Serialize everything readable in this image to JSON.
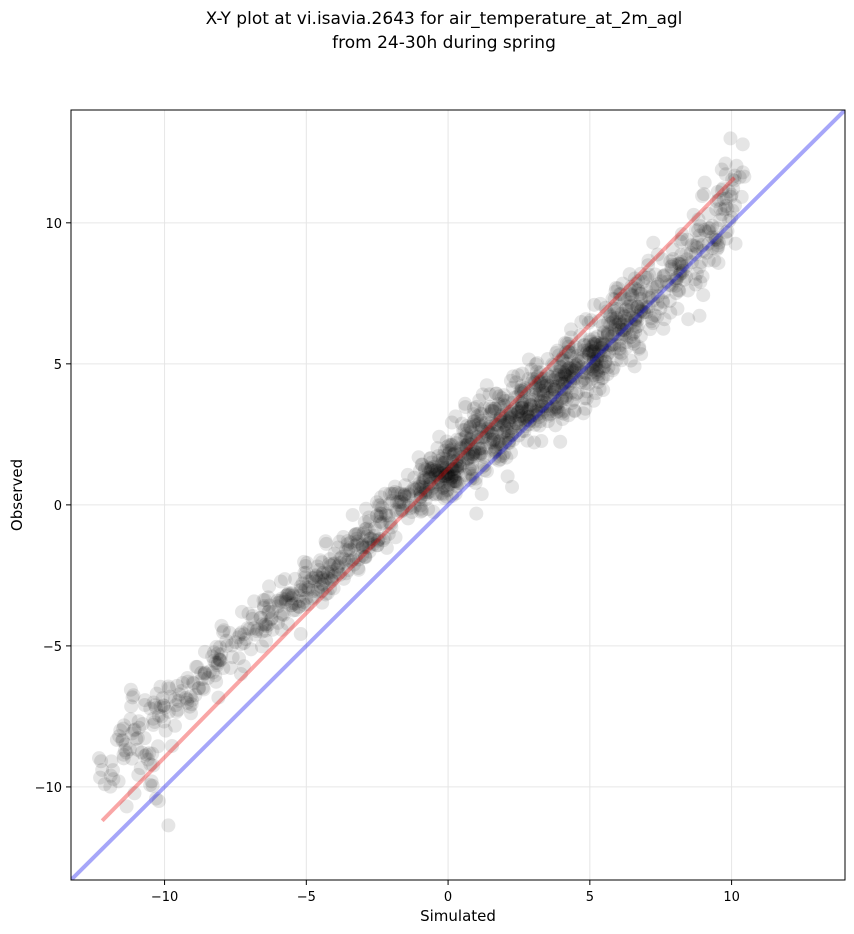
{
  "chart_data": {
    "type": "scatter",
    "title_lines": [
      "X-Y plot at vi.isavia.2643 for air_temperature_at_2m_agl",
      "from 24-30h during spring"
    ],
    "xlabel": "Simulated",
    "ylabel": "Observed",
    "xlim": [
      -13.3,
      14.0
    ],
    "ylim": [
      -13.3,
      14.0
    ],
    "xticks": [
      -10,
      -5,
      0,
      5,
      10
    ],
    "yticks": [
      -10,
      -5,
      0,
      5,
      10
    ],
    "xtick_labels": [
      "−10",
      "−5",
      "0",
      "5",
      "10"
    ],
    "ytick_labels": [
      "−10",
      "−5",
      "0",
      "5",
      "10"
    ],
    "grid": true,
    "point_color": "#000000",
    "point_alpha": 0.1,
    "scatter": {
      "description_of_cloud": "dense cloud of ~2000 observations along y = 1.01x + 1.0 (red fit), spread wider at mid/high values",
      "x": [
        -12.2,
        -11.9,
        -11.6,
        -11.4,
        -11.2,
        -11.0,
        -10.9,
        -10.7,
        -10.5,
        -10.4,
        -10.2,
        -10.1,
        -10.0,
        -9.8,
        -9.6,
        -9.4,
        -9.2,
        -9.0,
        -8.8,
        -8.6,
        -8.4,
        -8.2,
        -8.0,
        -7.8,
        -7.6,
        -7.4,
        -7.2,
        -7.0,
        -6.8,
        -6.6,
        -6.4,
        -6.2,
        -6.0,
        -5.8,
        -5.6,
        -5.4,
        -5.2,
        -5.0,
        -4.8,
        -4.6,
        -4.4,
        -4.2,
        -4.0,
        -3.8,
        -3.6,
        -3.4,
        -3.2,
        -3.0,
        -2.8,
        -2.6,
        -2.4,
        -2.2,
        -2.0,
        -1.8,
        -1.6,
        -1.4,
        -1.2,
        -1.0,
        -0.8,
        -0.6,
        -0.4,
        -0.2,
        0.0,
        0.2,
        0.4,
        0.6,
        0.8,
        1.0,
        1.2,
        1.4,
        1.6,
        1.8,
        2.0,
        2.2,
        2.4,
        2.6,
        2.8,
        3.0,
        3.2,
        3.4,
        3.6,
        3.8,
        4.0,
        4.2,
        4.4,
        4.6,
        4.8,
        5.0,
        5.2,
        5.4,
        5.6,
        5.8,
        6.0,
        6.2,
        6.4,
        6.6,
        6.8,
        7.0,
        7.2,
        7.4,
        7.6,
        7.8,
        8.0,
        8.2,
        8.4,
        8.6,
        8.8,
        9.0,
        9.2,
        9.4,
        9.6,
        9.8,
        10.0,
        10.1
      ],
      "y": [
        -9.4,
        -9.6,
        -8.2,
        -8.7,
        -7.6,
        -8.3,
        -7.9,
        -8.9,
        -9.2,
        -7.8,
        -10.5,
        -7.5,
        -7.2,
        -6.8,
        -7.1,
        -6.6,
        -6.9,
        -6.3,
        -6.5,
        -6.0,
        -5.9,
        -5.6,
        -5.3,
        -5.0,
        -5.4,
        -4.7,
        -4.9,
        -4.4,
        -4.6,
        -4.0,
        -4.3,
        -3.8,
        -3.6,
        -3.9,
        -3.2,
        -3.5,
        -2.9,
        -3.3,
        -2.6,
        -3.0,
        -2.4,
        -2.1,
        -2.5,
        -1.9,
        -1.6,
        -2.0,
        -1.3,
        -1.5,
        -0.9,
        -1.1,
        -0.6,
        -0.3,
        -0.8,
        0.1,
        -0.2,
        0.4,
        0.6,
        0.2,
        0.9,
        1.2,
        0.8,
        1.5,
        1.1,
        1.8,
        1.4,
        2.1,
        1.7,
        2.4,
        2.0,
        2.7,
        2.3,
        3.0,
        2.6,
        3.3,
        2.9,
        3.6,
        3.2,
        3.9,
        3.5,
        4.2,
        3.8,
        4.5,
        4.1,
        4.8,
        4.4,
        5.1,
        4.7,
        5.4,
        5.0,
        5.7,
        5.3,
        6.0,
        6.4,
        6.2,
        6.9,
        6.6,
        7.3,
        7.0,
        7.7,
        7.4,
        8.1,
        7.8,
        8.5,
        8.2,
        8.9,
        8.6,
        9.3,
        9.0,
        9.7,
        9.4,
        10.1,
        10.6,
        11.0,
        11.5
      ]
    },
    "fit_line": {
      "x": [
        -12.2,
        10.1
      ],
      "y": [
        -11.2,
        11.6
      ],
      "color": "#ee0000",
      "alpha": 0.35
    },
    "identity_line": {
      "x": [
        -13.3,
        14.0
      ],
      "y": [
        -13.3,
        14.0
      ],
      "color": "#0000ee",
      "alpha": 0.35
    }
  }
}
